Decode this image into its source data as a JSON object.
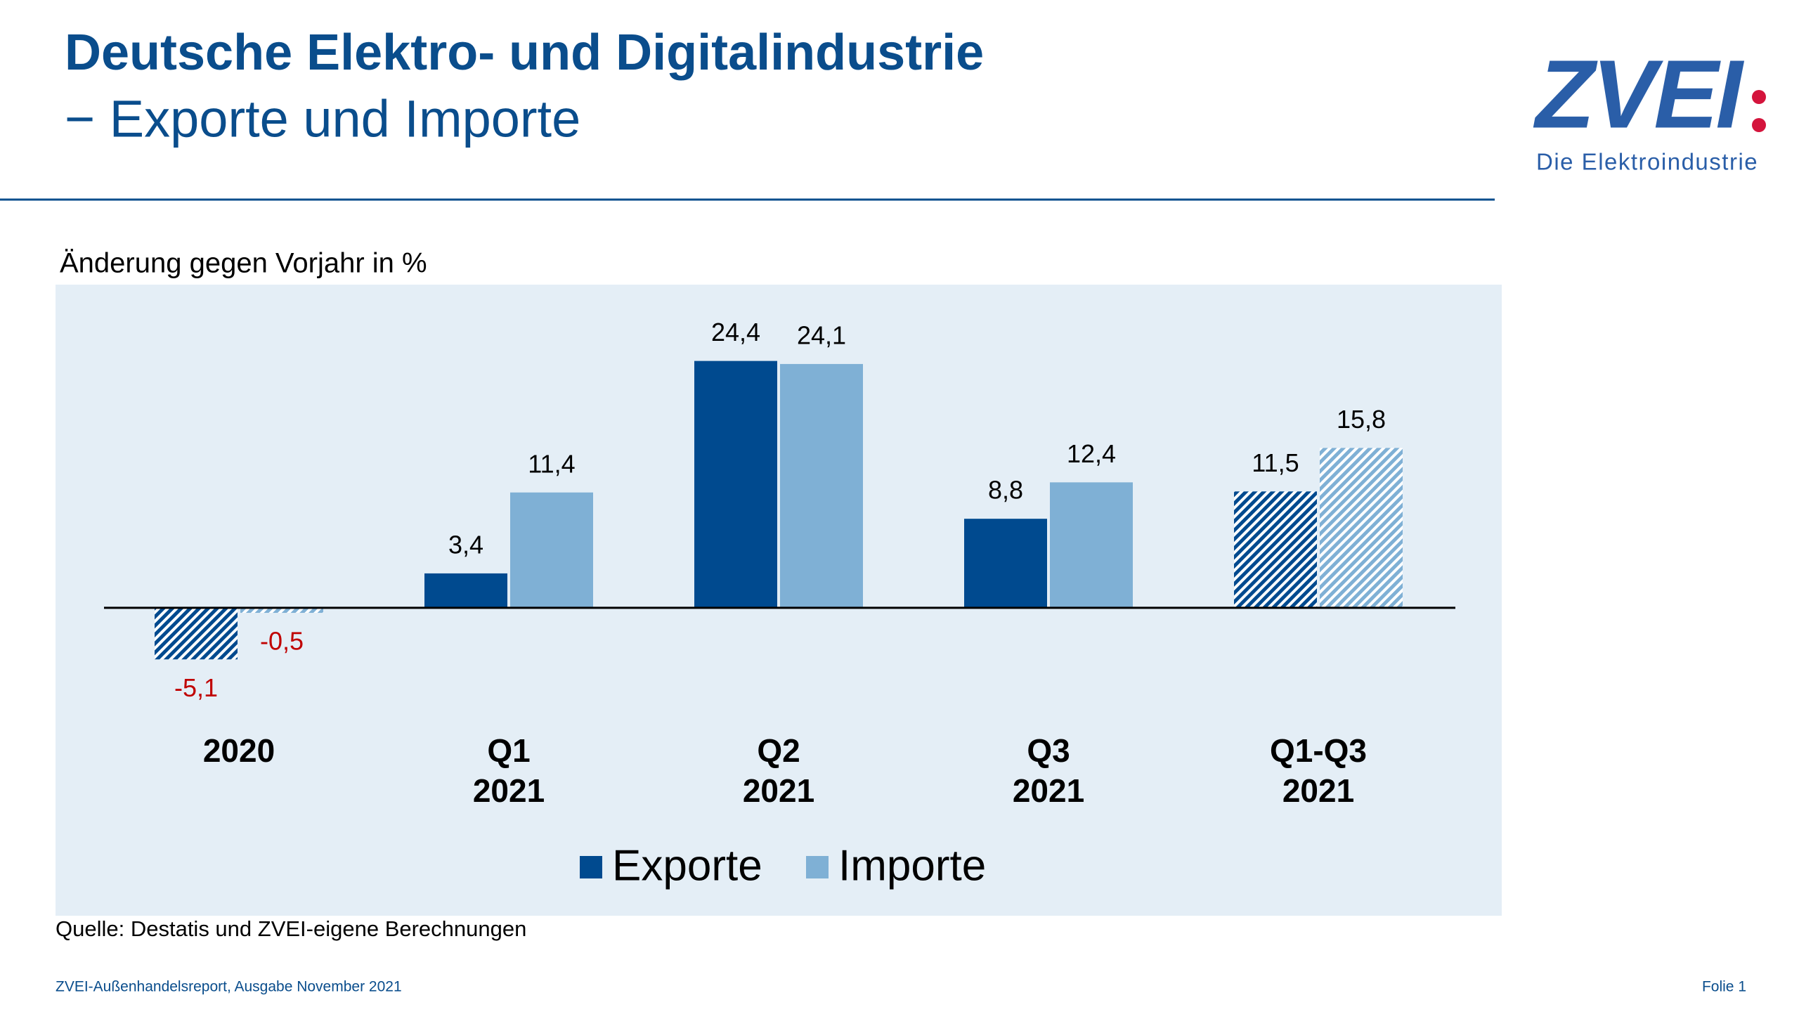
{
  "header": {
    "title": "Deutsche Elektro- und Digitalindustrie",
    "subtitle": "− Exporte und Importe"
  },
  "logo": {
    "name": "ZVEI",
    "tagline": "Die Elektroindustrie"
  },
  "chart_data": {
    "type": "bar",
    "axis_label": "Änderung gegen Vorjahr in %",
    "categories": [
      [
        "2020"
      ],
      [
        "Q1",
        "2021"
      ],
      [
        "Q2",
        "2021"
      ],
      [
        "Q3",
        "2021"
      ],
      [
        "Q1-Q3",
        "2021"
      ]
    ],
    "series": [
      {
        "name": "Exporte",
        "color": "#004a8f",
        "values": [
          -5.1,
          3.4,
          24.4,
          8.8,
          11.5
        ],
        "value_labels": [
          "-5,1",
          "3,4",
          "24,4",
          "8,8",
          "11,5"
        ]
      },
      {
        "name": "Importe",
        "color": "#7fb0d5",
        "values": [
          -0.5,
          11.4,
          24.1,
          12.4,
          15.8
        ],
        "value_labels": [
          "-0,5",
          "11,4",
          "24,1",
          "12,4",
          "15,8"
        ]
      }
    ],
    "hatched": [
      true,
      false,
      false,
      false,
      true
    ],
    "negative_label_color": "#c00000",
    "ylim": [
      -8,
      30
    ],
    "legend": "bottom"
  },
  "source": "Quelle: Destatis und ZVEI-eigene Berechnungen",
  "footer": {
    "left": "ZVEI-Außenhandelsreport, Ausgabe November 2021",
    "right": "Folie 1"
  }
}
